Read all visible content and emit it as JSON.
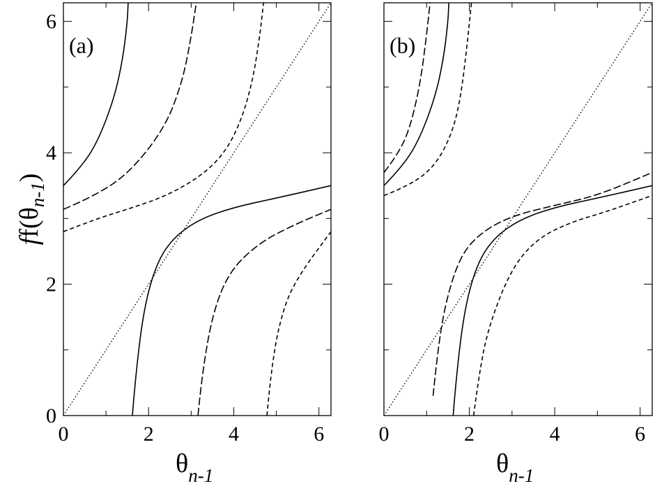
{
  "figure": {
    "xlabel_main": "θ",
    "xlabel_sub": "n-1",
    "ylabel_main": "f(θ",
    "ylabel_sub": "n-1",
    "ylabel_close": ")"
  },
  "chart_data": [
    {
      "type": "line",
      "title": "(a)",
      "xlim": [
        0,
        6.2832
      ],
      "ylim": [
        0,
        6.2832
      ],
      "xticks": [
        0,
        2,
        4,
        6
      ],
      "yticks": [
        0,
        2,
        4,
        6
      ],
      "grid": false,
      "series": [
        {
          "style": "dotted",
          "role": "diagonal",
          "x": [
            0,
            6.2832
          ],
          "y": [
            0,
            6.2832
          ]
        },
        {
          "style": "solid",
          "x": [
            0,
            0.4,
            0.8,
            1.2,
            1.4,
            1.5,
            1.52,
            1.62,
            1.7,
            1.9,
            2.2,
            2.6,
            3.2,
            4.0,
            5.0,
            6.2832
          ],
          "y": [
            3.5,
            3.77,
            4.16,
            4.84,
            5.45,
            5.99,
            6.2832,
            0.0,
            0.65,
            1.67,
            2.34,
            2.72,
            2.99,
            3.17,
            3.31,
            3.5
          ]
        },
        {
          "style": "dashed",
          "x": [
            0,
            0.8,
            1.6,
            2.4,
            2.8,
            3.0,
            3.12,
            3.16,
            3.25,
            3.5,
            3.9,
            4.6,
            5.4,
            6.2832
          ],
          "y": [
            3.14,
            3.36,
            3.73,
            4.4,
            5.1,
            5.76,
            6.2832,
            0.0,
            0.6,
            1.55,
            2.2,
            2.63,
            2.9,
            3.14
          ]
        },
        {
          "style": "shortdash",
          "x": [
            0,
            0.8,
            1.6,
            2.4,
            3.2,
            3.8,
            4.2,
            4.45,
            4.6,
            4.7,
            4.78,
            4.9,
            5.2,
            5.6,
            6.2832
          ],
          "y": [
            2.8,
            3.0,
            3.16,
            3.34,
            3.63,
            4.0,
            4.53,
            5.12,
            5.72,
            6.2832,
            0.0,
            0.87,
            1.72,
            2.2,
            2.8
          ]
        }
      ]
    },
    {
      "type": "line",
      "title": "(b)",
      "xlim": [
        0,
        6.2832
      ],
      "ylim": [
        0,
        6.2832
      ],
      "xticks": [
        0,
        2,
        4,
        6
      ],
      "yticks": [],
      "grid": false,
      "series": [
        {
          "style": "dotted",
          "role": "diagonal",
          "x": [
            0,
            6.2832
          ],
          "y": [
            0,
            6.2832
          ]
        },
        {
          "style": "solid",
          "x": [
            0,
            0.4,
            0.8,
            1.2,
            1.4,
            1.5,
            1.52,
            1.62,
            1.7,
            1.9,
            2.2,
            2.6,
            3.2,
            4.0,
            5.0,
            6.2832
          ],
          "y": [
            3.5,
            3.77,
            4.16,
            4.84,
            5.45,
            5.99,
            6.2832,
            0.0,
            0.65,
            1.67,
            2.34,
            2.72,
            2.99,
            3.17,
            3.31,
            3.5
          ]
        },
        {
          "style": "dashed",
          "x": [
            0,
            0.3,
            0.6,
            0.85,
            1.0,
            1.08,
            1.15,
            1.25,
            1.45,
            1.8,
            2.3,
            3.0,
            4.0,
            5.0,
            6.2832
          ],
          "y": [
            3.7,
            3.95,
            4.35,
            5.05,
            5.8,
            6.2832,
            0.3,
            0.95,
            1.75,
            2.45,
            2.8,
            3.04,
            3.2,
            3.35,
            3.7
          ]
        },
        {
          "style": "shortdash",
          "x": [
            0,
            0.6,
            1.2,
            1.6,
            1.8,
            1.95,
            2.05,
            2.1,
            2.25,
            2.5,
            3.0,
            3.6,
            4.4,
            5.2,
            6.2832
          ],
          "y": [
            3.35,
            3.5,
            3.8,
            4.3,
            4.85,
            5.65,
            6.2832,
            0.0,
            0.75,
            1.45,
            2.25,
            2.7,
            2.95,
            3.1,
            3.35
          ]
        }
      ]
    }
  ]
}
